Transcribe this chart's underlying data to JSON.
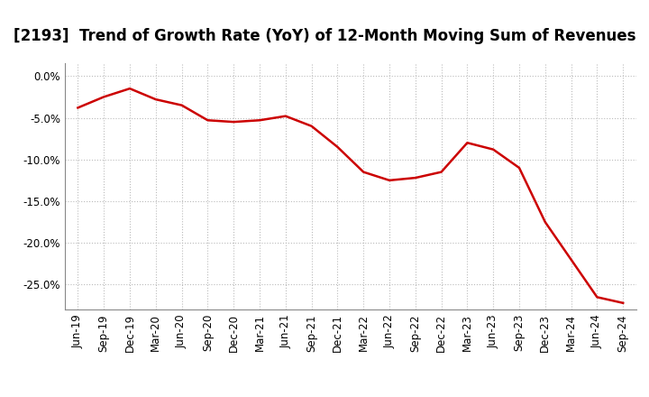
{
  "title": "[2193]  Trend of Growth Rate (YoY) of 12-Month Moving Sum of Revenues",
  "x_labels": [
    "Jun-19",
    "Sep-19",
    "Dec-19",
    "Mar-20",
    "Jun-20",
    "Sep-20",
    "Dec-20",
    "Mar-21",
    "Jun-21",
    "Sep-21",
    "Dec-21",
    "Mar-22",
    "Jun-22",
    "Sep-22",
    "Dec-22",
    "Mar-23",
    "Jun-23",
    "Sep-23",
    "Dec-23",
    "Mar-24",
    "Jun-24",
    "Sep-24"
  ],
  "y_values": [
    -3.8,
    -2.5,
    -1.5,
    -2.8,
    -3.5,
    -5.3,
    -5.5,
    -5.3,
    -4.8,
    -6.0,
    -8.5,
    -11.5,
    -12.5,
    -12.2,
    -11.5,
    -8.0,
    -8.8,
    -11.0,
    -17.5,
    -22.0,
    -26.5,
    -27.2
  ],
  "line_color": "#cc0000",
  "line_width": 1.8,
  "background_color": "#ffffff",
  "plot_bg_color": "#ffffff",
  "grid_color": "#bbbbbb",
  "title_fontsize": 12,
  "tick_fontsize": 8.5,
  "ylim": [
    -28,
    1.5
  ],
  "yticks": [
    0.0,
    -5.0,
    -10.0,
    -15.0,
    -20.0,
    -25.0
  ]
}
